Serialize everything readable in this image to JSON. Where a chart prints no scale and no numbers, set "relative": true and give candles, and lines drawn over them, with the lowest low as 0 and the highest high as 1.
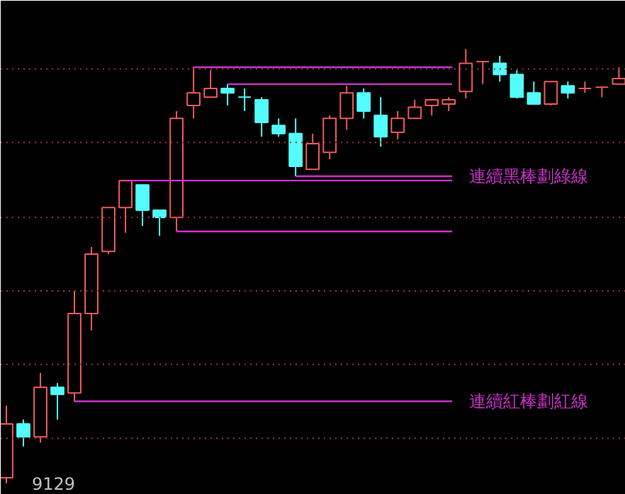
{
  "chart_data": {
    "type": "candlestick",
    "relative": true,
    "categories": [
      null,
      null,
      null,
      null,
      null,
      null,
      null,
      null,
      null,
      null,
      null,
      null,
      null,
      null,
      null,
      null,
      null,
      null,
      null,
      null,
      null,
      null,
      null,
      null,
      null,
      null,
      null,
      null,
      null,
      null,
      null,
      null,
      null,
      null,
      null,
      null,
      null
    ],
    "ohlc": [
      [
        0.013,
        0.179,
        0,
        0.137
      ],
      [
        0.137,
        0.147,
        0.085,
        0.107
      ],
      [
        0.107,
        0.254,
        0.094,
        0.221
      ],
      [
        0.221,
        0.231,
        0.147,
        0.205
      ],
      [
        0.208,
        0.443,
        0.189,
        0.391
      ],
      [
        0.391,
        0.544,
        0.352,
        0.528
      ],
      [
        0.534,
        0.635,
        0.528,
        0.635
      ],
      [
        0.635,
        0.697,
        0.577,
        0.697
      ],
      [
        0.687,
        0.687,
        0.593,
        0.629
      ],
      [
        0.629,
        0.629,
        0.57,
        0.612
      ],
      [
        0.612,
        0.857,
        0.58,
        0.84
      ],
      [
        0.87,
        0.958,
        0.84,
        0.899
      ],
      [
        0.889,
        0.951,
        0.889,
        0.909
      ],
      [
        0.909,
        0.919,
        0.87,
        0.899
      ],
      [
        0.889,
        0.909,
        0.857,
        0.889
      ],
      [
        0.883,
        0.889,
        0.798,
        0.831
      ],
      [
        0.824,
        0.84,
        0.798,
        0.805
      ],
      [
        0.805,
        0.84,
        0.707,
        0.73
      ],
      [
        0.723,
        0.805,
        0.723,
        0.782
      ],
      [
        0.762,
        0.847,
        0.746,
        0.84
      ],
      [
        0.84,
        0.915,
        0.814,
        0.899
      ],
      [
        0.899,
        0.909,
        0.84,
        0.857
      ],
      [
        0.847,
        0.889,
        0.775,
        0.798
      ],
      [
        0.808,
        0.857,
        0.792,
        0.84
      ],
      [
        0.84,
        0.883,
        0.84,
        0.866
      ],
      [
        0.87,
        0.883,
        0.847,
        0.883
      ],
      [
        0.873,
        0.889,
        0.857,
        0.883
      ],
      [
        0.902,
        1,
        0.886,
        0.967
      ],
      [
        0.971,
        0.971,
        0.919,
        0.971
      ],
      [
        0.967,
        0.984,
        0.925,
        0.941
      ],
      [
        0.941,
        0.951,
        0.886,
        0.889
      ],
      [
        0.899,
        0.925,
        0.873,
        0.873
      ],
      [
        0.873,
        0.925,
        0.87,
        0.925
      ],
      [
        0.915,
        0.925,
        0.886,
        0.899
      ],
      [
        0.909,
        0.925,
        0.899,
        0.909
      ],
      [
        0.912,
        0.912,
        0.889,
        0.912
      ],
      [
        0.919,
        0.958,
        0.919,
        0.932
      ]
    ],
    "colors": [
      "#f05a5a",
      "#54fcfc",
      "#f05a5a",
      "#54fcfc",
      "#f05a5a",
      "#f05a5a",
      "#f05a5a",
      "#f05a5a",
      "#54fcfc",
      "#54fcfc",
      "#f05a5a",
      "#f05a5a",
      "#f05a5a",
      "#54fcfc",
      "#54fcfc",
      "#54fcfc",
      "#54fcfc",
      "#54fcfc",
      "#f05a5a",
      "#f05a5a",
      "#f05a5a",
      "#54fcfc",
      "#54fcfc",
      "#f05a5a",
      "#f05a5a",
      "#f05a5a",
      "#f05a5a",
      "#f05a5a",
      "#f05a5a",
      "#54fcfc",
      "#54fcfc",
      "#54fcfc",
      "#f05a5a",
      "#54fcfc",
      "#f05a5a",
      "#f05a5a",
      "#f05a5a"
    ],
    "ref_lines": [
      {
        "axis": "y",
        "value": 0.954,
        "color": "#a03030",
        "line_style": "dotted"
      },
      {
        "axis": "y",
        "value": 0.785,
        "color": "#a03030",
        "line_style": "dotted"
      },
      {
        "axis": "y",
        "value": 0.612,
        "color": "#a03030",
        "line_style": "dotted"
      },
      {
        "axis": "y",
        "value": 0.443,
        "color": "#a03030",
        "line_style": "dotted"
      },
      {
        "axis": "y",
        "value": 0.274,
        "color": "#a03030",
        "line_style": "dotted"
      },
      {
        "axis": "y",
        "value": 0.104,
        "color": "#a03030",
        "line_style": "dotted"
      },
      {
        "axis": "y",
        "value": 0.958,
        "color": "#cc33cc"
      },
      {
        "axis": "y",
        "value": 0.919,
        "color": "#cc33cc"
      },
      {
        "axis": "y",
        "value": 0.697,
        "color": "#cc33cc"
      },
      {
        "axis": "y",
        "value": 0.707,
        "label": "連續黑棒劃綠線",
        "color": "#cc33cc"
      },
      {
        "axis": "y",
        "value": 0.58,
        "color": "#cc33cc"
      },
      {
        "axis": "y",
        "value": 0.189,
        "label": "連續紅棒劃紅線",
        "color": "#cc33cc"
      }
    ],
    "annotations": [
      "9129"
    ]
  }
}
